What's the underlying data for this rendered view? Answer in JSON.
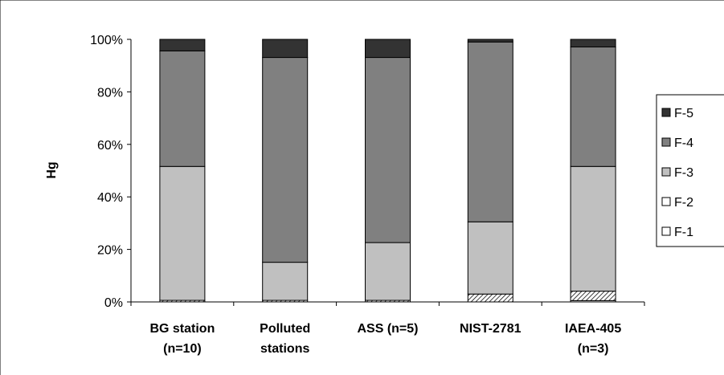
{
  "chart_data": {
    "type": "bar",
    "stacked": true,
    "normalized_percent": true,
    "categories": [
      [
        "BG station",
        "(n=10)"
      ],
      [
        "Polluted",
        "stations"
      ],
      [
        "ASS (n=5)"
      ],
      [
        "NIST-2781"
      ],
      [
        "IAEA-405",
        "(n=3)"
      ]
    ],
    "series": [
      {
        "name": "F-1",
        "color": "#ffffff",
        "pattern": "none",
        "values": [
          0.0,
          0.0,
          0.0,
          0.0,
          0.5
        ]
      },
      {
        "name": "F-2",
        "color": "#ffffff",
        "pattern": "hatch",
        "values": [
          0.6,
          0.6,
          0.6,
          3.0,
          3.6
        ]
      },
      {
        "name": "F-3",
        "color": "#c0c0c0",
        "pattern": "none",
        "values": [
          51.0,
          14.5,
          22.0,
          27.5,
          47.5
        ]
      },
      {
        "name": "F-4",
        "color": "#808080",
        "pattern": "none",
        "values": [
          44.0,
          78.0,
          70.5,
          68.5,
          45.5
        ]
      },
      {
        "name": "F-5",
        "color": "#333333",
        "pattern": "none",
        "values": [
          4.4,
          6.9,
          6.9,
          1.0,
          2.9
        ]
      }
    ],
    "ylabel": "Hg",
    "xlabel": "",
    "title": "",
    "ylim": [
      0,
      100
    ],
    "yticks": [
      "0%",
      "20%",
      "40%",
      "60%",
      "80%",
      "100%"
    ],
    "legend_order": [
      "F-5",
      "F-4",
      "F-3",
      "F-2",
      "F-1"
    ],
    "legend_position": "right",
    "grid": false
  }
}
